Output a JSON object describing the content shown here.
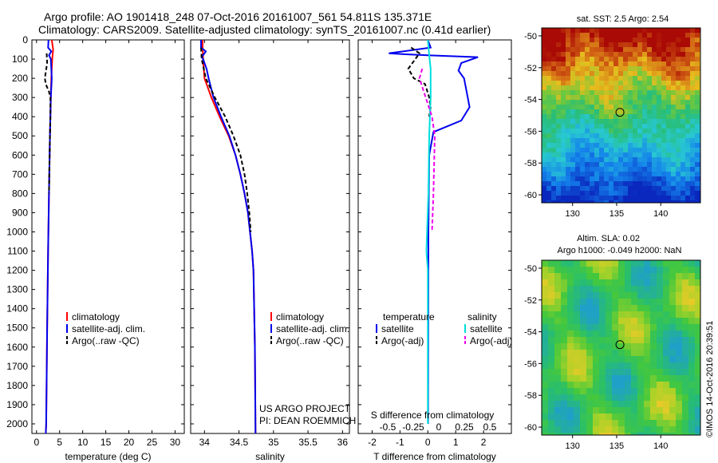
{
  "title_line1": "Argo profile: AO 1901418_248 07-Oct-2016 20161007_561 54.811S 135.371E",
  "title_line2": "Climatology: CARS2009. Satellite-adjusted climatology: synTS_20161007.nc (0.41d earlier)",
  "footer_credit": "©IMOS 14-Oct-2016 20:39:51",
  "project_line1": "US ARGO PROJECT",
  "project_line2": "PI: DEAN ROEMMICH",
  "colors": {
    "climatology": "#ff0000",
    "satellite": "#0000ee",
    "argo": "#000000",
    "sal_satellite": "#00dddd",
    "sal_argo": "#ee00ee"
  },
  "chart_data": [
    {
      "type": "line",
      "id": "temperature",
      "xlabel": "temperature (deg C)",
      "xlim": [
        -1,
        32
      ],
      "ylim": [
        2050,
        0
      ],
      "xticks": [
        0,
        5,
        10,
        15,
        20,
        25,
        30
      ],
      "yticks": [
        0,
        100,
        200,
        300,
        400,
        500,
        600,
        700,
        800,
        900,
        1000,
        1100,
        1200,
        1300,
        1400,
        1500,
        1600,
        1700,
        1800,
        1900,
        2000
      ],
      "legend": [
        "climatology",
        "satellite-adj. clim.",
        "Argo(..raw -QC)"
      ],
      "series": [
        {
          "name": "climatology",
          "color": "#ff0000",
          "points": [
            [
              3.3,
              0
            ],
            [
              3.6,
              50
            ],
            [
              3.4,
              100
            ],
            [
              3.2,
              200
            ],
            [
              3.1,
              300
            ],
            [
              2.9,
              500
            ],
            [
              2.7,
              800
            ],
            [
              2.5,
              1100
            ],
            [
              2.3,
              1500
            ],
            [
              2.1,
              2000
            ],
            [
              2.0,
              2050
            ]
          ]
        },
        {
          "name": "satellite-adj. clim.",
          "color": "#0000ee",
          "points": [
            [
              2.6,
              0
            ],
            [
              2.5,
              40
            ],
            [
              3.2,
              60
            ],
            [
              2.7,
              80
            ],
            [
              3.1,
              100
            ],
            [
              3.3,
              200
            ],
            [
              3.1,
              300
            ],
            [
              2.9,
              500
            ],
            [
              2.7,
              800
            ],
            [
              2.5,
              1100
            ],
            [
              2.3,
              1500
            ],
            [
              2.1,
              2000
            ],
            [
              2.0,
              2050
            ]
          ]
        },
        {
          "name": "Argo(..raw -QC)",
          "color": "#000000",
          "dashed": true,
          "points": [
            [
              2.2,
              70
            ],
            [
              2.3,
              120
            ],
            [
              1.8,
              200
            ],
            [
              2.0,
              230
            ],
            [
              2.7,
              270
            ],
            [
              3.0,
              300
            ],
            [
              3.0,
              400
            ],
            [
              2.9,
              500
            ],
            [
              2.7,
              800
            ]
          ]
        }
      ]
    },
    {
      "type": "line",
      "id": "salinity",
      "xlabel": "salinity",
      "xlim": [
        33.8,
        36.1
      ],
      "ylim": [
        2050,
        0
      ],
      "xticks": [
        34,
        34.5,
        35,
        35.5,
        36
      ],
      "legend": [
        "climatology",
        "satellite-adj. clim.",
        "Argo(..raw -QC)"
      ],
      "series": [
        {
          "name": "climatology",
          "color": "#ff0000",
          "points": [
            [
              33.97,
              0
            ],
            [
              33.98,
              100
            ],
            [
              34.0,
              200
            ],
            [
              34.1,
              300
            ],
            [
              34.22,
              400
            ],
            [
              34.35,
              500
            ],
            [
              34.45,
              600
            ],
            [
              34.52,
              700
            ],
            [
              34.58,
              800
            ],
            [
              34.63,
              900
            ],
            [
              34.66,
              1000
            ],
            [
              34.69,
              1100
            ],
            [
              34.71,
              1200
            ],
            [
              34.72,
              1400
            ],
            [
              34.73,
              1600
            ],
            [
              34.74,
              2050
            ]
          ]
        },
        {
          "name": "satellite-adj. clim.",
          "color": "#0000ee",
          "points": [
            [
              33.95,
              0
            ],
            [
              33.95,
              40
            ],
            [
              34.02,
              60
            ],
            [
              33.96,
              90
            ],
            [
              33.98,
              100
            ],
            [
              34.03,
              150
            ],
            [
              34.06,
              200
            ],
            [
              34.13,
              300
            ],
            [
              34.24,
              400
            ],
            [
              34.36,
              500
            ],
            [
              34.45,
              600
            ],
            [
              34.52,
              700
            ],
            [
              34.58,
              800
            ],
            [
              34.63,
              900
            ],
            [
              34.66,
              1000
            ],
            [
              34.69,
              1100
            ],
            [
              34.71,
              1200
            ],
            [
              34.72,
              1400
            ],
            [
              34.73,
              1600
            ],
            [
              34.74,
              2050
            ]
          ]
        },
        {
          "name": "Argo(..raw -QC)",
          "color": "#000000",
          "dashed": true,
          "points": [
            [
              33.95,
              40
            ],
            [
              33.96,
              100
            ],
            [
              34.02,
              200
            ],
            [
              34.15,
              300
            ],
            [
              34.3,
              400
            ],
            [
              34.42,
              500
            ],
            [
              34.52,
              600
            ],
            [
              34.58,
              700
            ],
            [
              34.62,
              800
            ],
            [
              34.65,
              900
            ],
            [
              34.67,
              1000
            ]
          ]
        }
      ]
    },
    {
      "type": "line",
      "id": "difference",
      "xlabel": "T difference from climatology",
      "x2label": "S difference from climatology",
      "xlim": [
        -2.5,
        3.0
      ],
      "ylim": [
        2050,
        0
      ],
      "xticks": [
        -2,
        -1,
        0,
        1,
        2
      ],
      "x2ticks": [
        -0.5,
        -0.25,
        0,
        0.25,
        0.5
      ],
      "legend_headers": [
        "temperature",
        "salinity"
      ],
      "legend": [
        "satellite",
        "Argo(-adj)",
        "satellite",
        "Argo(-adj)"
      ],
      "series": [
        {
          "name": "satellite",
          "group": "temperature",
          "color": "#0000ee",
          "points": [
            [
              0,
              0
            ],
            [
              0.1,
              40
            ],
            [
              -1.4,
              70
            ],
            [
              -0.8,
              75
            ],
            [
              0,
              80
            ],
            [
              1.8,
              90
            ],
            [
              1.2,
              120
            ],
            [
              1.1,
              160
            ],
            [
              1.3,
              200
            ],
            [
              1.5,
              350
            ],
            [
              1.2,
              420
            ],
            [
              0.2,
              480
            ],
            [
              0.05,
              600
            ],
            [
              0.02,
              1000
            ],
            [
              0.01,
              2000
            ]
          ]
        },
        {
          "name": "Argo(-adj)",
          "group": "temperature",
          "color": "#000000",
          "dashed": true,
          "points": [
            [
              -0.6,
              40
            ],
            [
              -0.3,
              70
            ],
            [
              -0.7,
              150
            ],
            [
              -0.5,
              200
            ],
            [
              -0.1,
              230
            ],
            [
              0.05,
              300
            ],
            [
              0.1,
              350
            ],
            [
              0.05,
              400
            ]
          ]
        },
        {
          "name": "satellite",
          "group": "salinity",
          "color": "#00dddd",
          "points": [
            [
              0,
              0
            ],
            [
              0.05,
              80
            ],
            [
              0.1,
              150
            ],
            [
              0.1,
              300
            ],
            [
              0.05,
              500
            ],
            [
              0.02,
              800
            ],
            [
              -0.05,
              1100
            ],
            [
              0,
              1200
            ],
            [
              0,
              2000
            ]
          ]
        },
        {
          "name": "Argo(-adj)",
          "group": "salinity",
          "color": "#ee00ee",
          "dashed": true,
          "points": [
            [
              -0.2,
              150
            ],
            [
              -0.3,
              200
            ],
            [
              0.15,
              400
            ],
            [
              0.25,
              500
            ],
            [
              0.2,
              800
            ],
            [
              0.15,
              1000
            ]
          ]
        }
      ]
    },
    {
      "type": "heatmap",
      "id": "sst_map",
      "title": "sat. SST: 2.5 Argo: 2.54",
      "xlim": [
        126.5,
        144.5
      ],
      "ylim": [
        -60.5,
        -49.5
      ],
      "xticks": [
        130,
        135,
        140
      ],
      "yticks": [
        -50,
        -52,
        -54,
        -56,
        -58,
        -60
      ],
      "marker": [
        135.371,
        -54.811
      ]
    },
    {
      "type": "heatmap",
      "id": "sla_map",
      "title_line1": "Altim. SLA: 0.02",
      "title_line2": "Argo h1000: -0.049 h2000: NaN",
      "xlim": [
        126.5,
        144.5
      ],
      "ylim": [
        -60.5,
        -49.5
      ],
      "xticks": [
        130,
        135,
        140
      ],
      "yticks": [
        -50,
        -52,
        -54,
        -56,
        -58,
        -60
      ],
      "marker": [
        135.371,
        -54.811
      ]
    }
  ]
}
